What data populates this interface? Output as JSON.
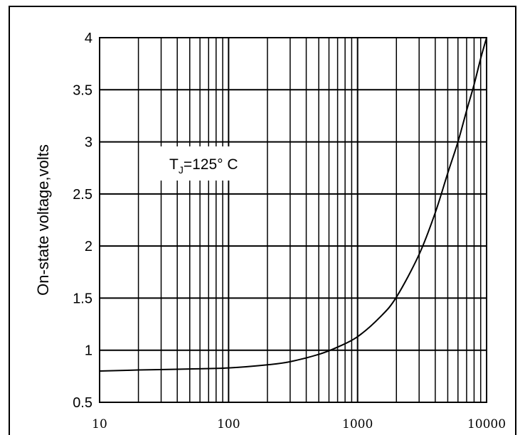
{
  "chart_data": {
    "type": "line",
    "title": "",
    "xlabel": "",
    "ylabel": "On-state voltage,volts",
    "x_scale": "log",
    "xlim": [
      10,
      10000
    ],
    "ylim": [
      0.5,
      4
    ],
    "x_ticks": [
      "10",
      "100",
      "1000",
      "10000"
    ],
    "y_ticks": [
      "0.5",
      "1",
      "1.5",
      "2",
      "2.5",
      "3",
      "3.5",
      "4"
    ],
    "grid": true,
    "annotation": {
      "main": "T",
      "sub": "J",
      "rest": "=125° C"
    },
    "series": [
      {
        "x": [
          10,
          20,
          50,
          100,
          200,
          300,
          500,
          700,
          1000,
          1500,
          2000,
          3000,
          4000,
          5000,
          6000,
          7000,
          8000,
          9000,
          10000
        ],
        "y": [
          0.8,
          0.81,
          0.82,
          0.83,
          0.86,
          0.89,
          0.96,
          1.03,
          1.13,
          1.32,
          1.51,
          1.92,
          2.32,
          2.7,
          3.0,
          3.3,
          3.55,
          3.8,
          4.0
        ]
      }
    ]
  },
  "colors": {
    "line": "#000000",
    "grid": "#000000",
    "background": "#ffffff"
  }
}
